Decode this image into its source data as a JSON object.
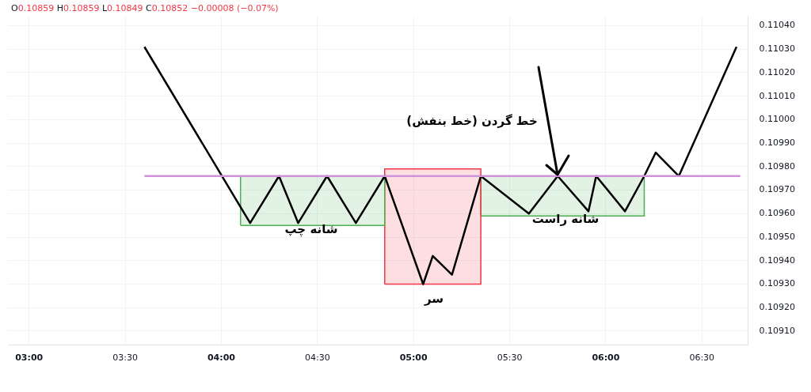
{
  "chart_data": {
    "type": "line",
    "marker": "none",
    "line_style": "solid",
    "grid": true,
    "legend": false,
    "annotations": [
      "O0.10859 H0.10859 L0.10849 C0.10852 −0.00008 (−0.07%)",
      "خط گردن (خط بنفش)",
      "شانه چپ",
      "سر",
      "شانه راست"
    ],
    "xlim": [
      2.89,
      6.74
    ],
    "xticks": [
      {
        "value": 3,
        "label": "03:00"
      },
      {
        "value": 3.5,
        "label": "03:30"
      },
      {
        "value": 4,
        "label": "04:00"
      },
      {
        "value": 4.5,
        "label": "04:30"
      },
      {
        "value": 5,
        "label": "05:00"
      },
      {
        "value": 5.5,
        "label": "05:30"
      },
      {
        "value": 6,
        "label": "06:00"
      },
      {
        "value": 6.5,
        "label": "06:30"
      }
    ],
    "ylim": [
      0.10904,
      0.11044
    ],
    "yticks": [
      {
        "value": 0.1091,
        "label": "0.10910"
      },
      {
        "value": 0.1092,
        "label": "0.10920"
      },
      {
        "value": 0.1093,
        "label": "0.10930"
      },
      {
        "value": 0.1094,
        "label": "0.10940"
      },
      {
        "value": 0.1095,
        "label": "0.10950"
      },
      {
        "value": 0.1096,
        "label": "0.10960"
      },
      {
        "value": 0.1097,
        "label": "0.10970"
      },
      {
        "value": 0.1098,
        "label": "0.10980"
      },
      {
        "value": 0.1099,
        "label": "0.10990"
      },
      {
        "value": 0.11,
        "label": "0.11000"
      },
      {
        "value": 0.1101,
        "label": "0.11010"
      },
      {
        "value": 0.1102,
        "label": "0.11020"
      },
      {
        "value": 0.1103,
        "label": "0.11030"
      },
      {
        "value": 0.1104,
        "label": "0.11040"
      }
    ],
    "series": [
      {
        "type": "area",
        "color": "#4caf50",
        "x": [
          4.1,
          4.1,
          4.85,
          4.85,
          4.1
        ],
        "values": [
          0.10955,
          0.10976,
          0.10976,
          0.10955,
          0.10955
        ]
      },
      {
        "type": "area",
        "color": "#f23645",
        "x": [
          4.85,
          4.85,
          5.35,
          5.35,
          4.85
        ],
        "values": [
          0.1093,
          0.10979,
          0.10979,
          0.1093,
          0.1093
        ]
      },
      {
        "type": "area",
        "color": "#4caf50",
        "x": [
          5.35,
          5.35,
          6.2,
          6.2,
          5.35
        ],
        "values": [
          0.10959,
          0.10976,
          0.10976,
          0.10959,
          0.10959
        ]
      },
      {
        "color": "#ce93d8",
        "x": [
          3.6,
          6.7
        ],
        "values": [
          0.10976,
          0.10976
        ]
      },
      {
        "color": "#000000",
        "x": [
          3.6,
          4.15,
          4.3,
          4.4,
          4.55,
          4.7,
          4.85,
          5.05,
          5.1,
          5.2,
          5.35,
          5.6,
          5.75,
          5.91,
          5.95,
          6.1,
          6.2,
          6.26,
          6.38,
          6.68
        ],
        "values": [
          0.11031,
          0.10956,
          0.10976,
          0.10956,
          0.10976,
          0.10956,
          0.10976,
          0.1093,
          0.10942,
          0.10934,
          0.10976,
          0.1096,
          0.10976,
          0.10961,
          0.10976,
          0.10961,
          0.10976,
          0.10986,
          0.10976,
          0.11031
        ]
      }
    ]
  }
}
